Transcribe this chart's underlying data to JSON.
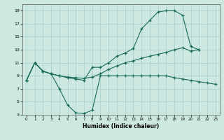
{
  "xlabel": "Humidex (Indice chaleur)",
  "xlim": [
    -0.5,
    23.5
  ],
  "ylim": [
    3,
    20
  ],
  "xticks": [
    0,
    1,
    2,
    3,
    4,
    5,
    6,
    7,
    8,
    9,
    10,
    11,
    12,
    13,
    14,
    15,
    16,
    17,
    18,
    19,
    20,
    21,
    22,
    23
  ],
  "yticks": [
    3,
    5,
    7,
    9,
    11,
    13,
    15,
    17,
    19
  ],
  "bg_color": "#cce8e0",
  "grid_color": "#aad4cc",
  "line_color": "#1a6b5a",
  "line1_x": [
    0,
    1,
    2,
    3,
    4,
    5,
    6,
    7,
    8,
    9,
    10,
    11,
    12,
    13,
    14,
    15,
    16,
    17,
    18,
    19,
    20,
    21,
    22,
    23
  ],
  "line1_y": [
    8.3,
    11.0,
    9.7,
    9.3,
    7.0,
    4.5,
    3.3,
    3.2,
    3.7,
    9.0,
    9.0,
    9.0,
    9.0,
    9.0,
    9.0,
    9.0,
    9.0,
    9.0,
    8.7,
    8.5,
    8.3,
    8.1,
    7.9,
    7.7
  ],
  "line2_x": [
    0,
    1,
    2,
    3,
    4,
    5,
    6,
    7,
    8,
    9,
    10,
    11,
    12,
    13,
    14,
    15,
    16,
    17,
    18,
    19,
    20,
    21
  ],
  "line2_y": [
    8.3,
    11.0,
    9.7,
    9.3,
    9.0,
    8.7,
    8.5,
    8.3,
    10.3,
    10.3,
    11.0,
    12.0,
    12.5,
    13.2,
    16.2,
    17.5,
    18.8,
    19.0,
    19.0,
    18.3,
    13.5,
    13.0
  ],
  "line3_x": [
    0,
    1,
    2,
    3,
    4,
    5,
    6,
    7,
    8,
    9,
    10,
    11,
    12,
    13,
    14,
    15,
    16,
    17,
    18,
    19,
    20,
    21
  ],
  "line3_y": [
    8.3,
    11.0,
    9.7,
    9.3,
    9.0,
    8.8,
    8.7,
    8.6,
    8.8,
    9.3,
    10.0,
    10.5,
    11.0,
    11.3,
    11.7,
    12.0,
    12.3,
    12.6,
    13.0,
    13.3,
    12.8,
    13.0
  ]
}
